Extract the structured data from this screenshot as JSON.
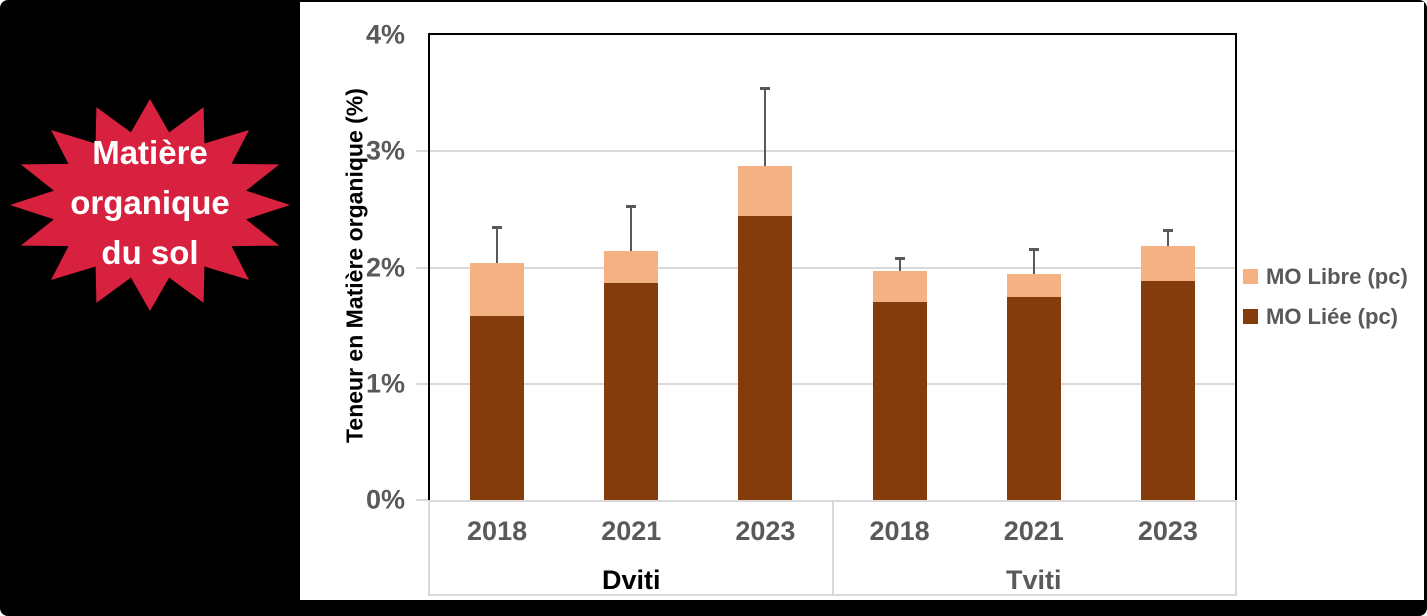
{
  "badge": {
    "lines": [
      "Matière",
      "organique",
      "du sol"
    ],
    "bg_color": "#d7213e",
    "text_color": "#ffffff"
  },
  "chart_data": {
    "type": "bar",
    "stacked": true,
    "title": "",
    "ylabel": "Teneur en Matière organique (%)",
    "ylim": [
      0,
      4
    ],
    "yticks": [
      {
        "label": "0%",
        "value": 0
      },
      {
        "label": "1%",
        "value": 1
      },
      {
        "label": "2%",
        "value": 2
      },
      {
        "label": "3%",
        "value": 3
      },
      {
        "label": "4%",
        "value": 4
      }
    ],
    "groups": [
      {
        "label": "Dviti",
        "label_color": "#000000",
        "categories": [
          "2018",
          "2021",
          "2023"
        ]
      },
      {
        "label": "Tviti",
        "label_color": "#595959",
        "categories": [
          "2018",
          "2021",
          "2023"
        ]
      }
    ],
    "series": [
      {
        "name": "MO Liée (pc)",
        "color": "#843C0C",
        "values": [
          1.6,
          1.88,
          2.46,
          1.72,
          1.76,
          1.9
        ]
      },
      {
        "name": "MO Libre (pc)",
        "color": "#F4B183",
        "values": [
          0.46,
          0.28,
          0.43,
          0.27,
          0.2,
          0.3
        ]
      }
    ],
    "stack_totals": [
      2.06,
      2.16,
      2.89,
      1.99,
      1.96,
      2.2
    ],
    "error_bars": {
      "tops": [
        2.36,
        2.54,
        3.55,
        2.09,
        2.17,
        2.33
      ],
      "color": "#595959"
    },
    "legend": {
      "position": "right",
      "entries": [
        {
          "label": "MO Libre (pc)",
          "color": "#F4B183"
        },
        {
          "label": "MO Liée (pc)",
          "color": "#843C0C"
        }
      ]
    },
    "grid": {
      "show": true,
      "color": "#D9D9D9"
    },
    "axis_text_color": "#595959"
  }
}
